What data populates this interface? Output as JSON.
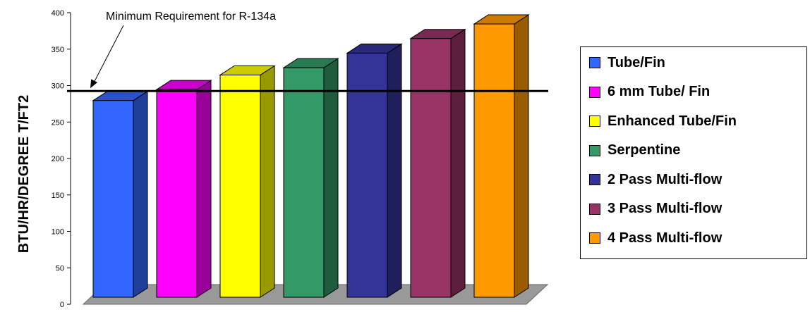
{
  "chart_data": {
    "type": "bar",
    "ylabel": "BTU/HR/DEGREE T/FT2",
    "ylim": [
      0,
      400
    ],
    "yticks": [
      0,
      50,
      100,
      150,
      200,
      250,
      300,
      350,
      400
    ],
    "series": [
      {
        "name": "Tube/Fin",
        "value": 280,
        "color": "#3366ff"
      },
      {
        "name": "6 mm Tube/ Fin",
        "value": 295,
        "color": "#ff00ff"
      },
      {
        "name": "Enhanced Tube/Fin",
        "value": 315,
        "color": "#ffff00"
      },
      {
        "name": "Serpentine",
        "value": 325,
        "color": "#339966"
      },
      {
        "name": "2 Pass Multi-flow",
        "value": 345,
        "color": "#333399"
      },
      {
        "name": "3 Pass Multi-flow",
        "value": 365,
        "color": "#993366"
      },
      {
        "name": "4 Pass Multi-flow",
        "value": 385,
        "color": "#ff9900"
      }
    ],
    "reference_line": {
      "value": 292,
      "label": "Minimum Requirement for R-134a"
    },
    "legend_position": "right",
    "grid": false
  }
}
